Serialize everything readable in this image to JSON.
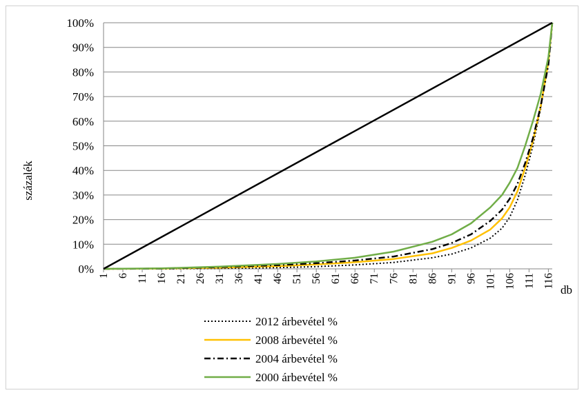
{
  "chart_data": {
    "type": "line",
    "title": "",
    "ylabel": "százalék",
    "xlabel": "db",
    "ylim": [
      0,
      100
    ],
    "xlim": [
      1,
      117
    ],
    "y_ticks": [
      "0%",
      "10%",
      "20%",
      "30%",
      "40%",
      "50%",
      "60%",
      "70%",
      "80%",
      "90%",
      "100%"
    ],
    "x_ticks": [
      1,
      6,
      11,
      16,
      21,
      26,
      31,
      36,
      41,
      46,
      51,
      56,
      61,
      66,
      71,
      76,
      81,
      86,
      91,
      96,
      101,
      106,
      111,
      116
    ],
    "grid": "horizontal",
    "legend": "bottom",
    "series": [
      {
        "name": "",
        "style": "solid-thick",
        "color": "#000000",
        "x": [
          1,
          117
        ],
        "y": [
          0,
          100
        ]
      },
      {
        "name": "2012 árbevétel %",
        "style": "dotted",
        "color": "#000000",
        "x": [
          1,
          16,
          31,
          46,
          56,
          66,
          76,
          86,
          91,
          96,
          101,
          104,
          106,
          108,
          110,
          112,
          114,
          116,
          117
        ],
        "y": [
          0,
          0,
          0.2,
          0.5,
          0.9,
          1.6,
          2.6,
          4.5,
          6,
          8.5,
          12.5,
          16.5,
          21,
          28,
          38,
          50,
          65,
          85,
          100
        ]
      },
      {
        "name": "2008 árbevétel %",
        "style": "solid",
        "color": "#ffc000",
        "x": [
          1,
          16,
          31,
          46,
          56,
          66,
          76,
          86,
          91,
          96,
          101,
          104,
          106,
          108,
          110,
          112,
          114,
          116,
          117
        ],
        "y": [
          0,
          0.1,
          0.5,
          1.1,
          1.8,
          2.7,
          4,
          6.3,
          8.5,
          11.5,
          16,
          20.5,
          25,
          31.5,
          41,
          52,
          66,
          84,
          100
        ]
      },
      {
        "name": "2004 árbevétel %",
        "style": "dash-dot",
        "color": "#000000",
        "x": [
          1,
          16,
          31,
          46,
          56,
          66,
          76,
          86,
          91,
          96,
          101,
          104,
          106,
          108,
          110,
          112,
          114,
          116,
          117
        ],
        "y": [
          0,
          0.1,
          0.7,
          1.5,
          2.3,
          3.4,
          5,
          8,
          10.5,
          14,
          19.5,
          24,
          28.5,
          34.5,
          43,
          53,
          66,
          83,
          100
        ]
      },
      {
        "name": "2000 árbevétel %",
        "style": "solid",
        "color": "#70ad47",
        "x": [
          1,
          16,
          31,
          46,
          56,
          66,
          76,
          86,
          91,
          96,
          101,
          104,
          106,
          108,
          110,
          112,
          114,
          116,
          117
        ],
        "y": [
          0,
          0.2,
          0.9,
          2,
          3,
          4.5,
          7,
          11,
          14,
          18.5,
          25,
          30,
          35,
          41,
          50,
          60,
          71,
          86,
          100
        ]
      }
    ]
  }
}
